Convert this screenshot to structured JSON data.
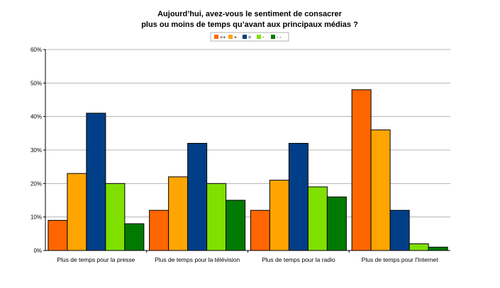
{
  "chart_data": {
    "type": "bar",
    "title_line1": "Aujourd’hui, avez-vous le sentiment de consacrer",
    "title_line2": "plus ou moins de temps qu’avant aux principaux médias ?",
    "categories": [
      "Plus de temps pour la presse",
      "Plus de temps pour la télévision",
      "Plus de temps pour la radio",
      "Plus de temps pour l'Internet"
    ],
    "series": [
      {
        "name": "++",
        "color": "#ff6600",
        "values": [
          9,
          12,
          12,
          48
        ]
      },
      {
        "name": "+",
        "color": "#ffa500",
        "values": [
          23,
          22,
          21,
          36
        ]
      },
      {
        "name": "=",
        "color": "#003f87",
        "values": [
          41,
          32,
          32,
          12
        ]
      },
      {
        "name": "-",
        "color": "#80e000",
        "values": [
          20,
          20,
          19,
          2
        ]
      },
      {
        "name": "- -",
        "color": "#007a00",
        "values": [
          8,
          15,
          16,
          1
        ]
      }
    ],
    "yticks": [
      "0%",
      "10%",
      "20%",
      "30%",
      "40%",
      "50%",
      "60%"
    ],
    "ylim": [
      0,
      60
    ],
    "grid": true,
    "legend_position": "top-center",
    "xlabel": "",
    "ylabel": ""
  }
}
